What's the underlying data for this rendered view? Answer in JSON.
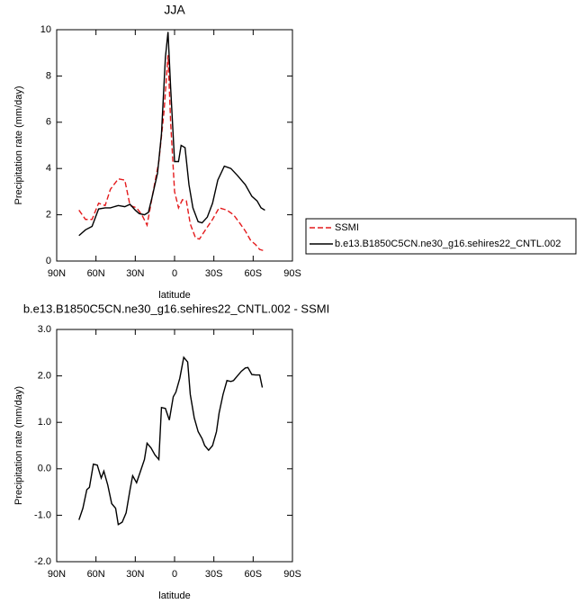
{
  "chart_data": [
    {
      "type": "line",
      "title": "JJA",
      "xlabel": "latitude",
      "ylabel": "Precipitation rate (mm/day)",
      "xlim": [
        90,
        -90
      ],
      "xticks": [
        {
          "value": 90,
          "label": "90N"
        },
        {
          "value": 60,
          "label": "60N"
        },
        {
          "value": 30,
          "label": "30N"
        },
        0,
        {
          "value": -30,
          "label": "30S"
        },
        {
          "value": -60,
          "label": "60S"
        },
        {
          "value": -90,
          "label": "90S"
        }
      ],
      "ylim": [
        0,
        10
      ],
      "yticks": [
        0,
        2,
        4,
        6,
        8,
        10
      ],
      "series": [
        {
          "name": "SSMI",
          "color": "#e41a1c",
          "dash": true,
          "x": [
            73,
            68,
            63,
            58,
            53,
            49,
            43,
            38,
            34,
            29,
            25,
            21,
            17,
            12,
            8,
            5,
            3,
            0,
            -3,
            -6,
            -9,
            -12,
            -16,
            -19,
            -23,
            -29,
            -34,
            -40,
            -45,
            -49,
            -54,
            -58,
            -62,
            -65,
            -68
          ],
          "values": [
            2.2,
            1.8,
            1.8,
            2.5,
            2.4,
            3.1,
            3.55,
            3.5,
            2.4,
            2.3,
            2.0,
            1.55,
            2.8,
            4.3,
            6.5,
            8.9,
            6.0,
            3.0,
            2.3,
            2.65,
            2.6,
            1.6,
            1.0,
            0.95,
            1.3,
            1.8,
            2.3,
            2.2,
            2.0,
            1.7,
            1.3,
            0.9,
            0.7,
            0.5,
            0.45
          ]
        },
        {
          "name": "b.e13.B1850C5CN.ne30_g16.sehires22_CNTL.002",
          "color": "#000000",
          "dash": false,
          "x": [
            73,
            68,
            63,
            58,
            53,
            49,
            43,
            38,
            34,
            30,
            27,
            23,
            20,
            17,
            13,
            10,
            7,
            5,
            3,
            0,
            -3,
            -5,
            -8,
            -11,
            -14,
            -18,
            -21,
            -25,
            -29,
            -33,
            -38,
            -43,
            -48,
            -54,
            -59,
            -63,
            -66,
            -69
          ],
          "values": [
            1.1,
            1.35,
            1.5,
            2.25,
            2.3,
            2.3,
            2.4,
            2.35,
            2.45,
            2.2,
            2.05,
            2.0,
            2.1,
            2.8,
            3.8,
            5.5,
            8.8,
            9.9,
            7.5,
            4.3,
            4.3,
            5.0,
            4.9,
            3.3,
            2.3,
            1.7,
            1.65,
            1.9,
            2.5,
            3.5,
            4.1,
            4.0,
            3.7,
            3.3,
            2.8,
            2.6,
            2.3,
            2.2
          ]
        }
      ]
    },
    {
      "type": "line",
      "title": "b.e13.B1850C5CN.ne30_g16.sehires22_CNTL.002 - SSMI",
      "xlabel": "latitude",
      "ylabel": "Precipitation rate (mm/day)",
      "xlim": [
        90,
        -90
      ],
      "xticks": [
        {
          "value": 90,
          "label": "90N"
        },
        {
          "value": 60,
          "label": "60N"
        },
        {
          "value": 30,
          "label": "30N"
        },
        0,
        {
          "value": -30,
          "label": "30S"
        },
        {
          "value": -60,
          "label": "60S"
        },
        {
          "value": -90,
          "label": "90S"
        }
      ],
      "ylim": [
        -2,
        3
      ],
      "yticks": [
        {
          "value": 3,
          "label": "3.0"
        },
        {
          "value": 2,
          "label": "2.0"
        },
        {
          "value": 1,
          "label": "1.0"
        },
        {
          "value": 0,
          "label": "0.0"
        },
        {
          "value": -1,
          "label": "-1.0"
        },
        {
          "value": -2,
          "label": "-2.0"
        }
      ],
      "series": [
        {
          "color": "#000000",
          "dash": false,
          "x": [
            73,
            70,
            67,
            65,
            62,
            59,
            56,
            54,
            51,
            48,
            45,
            43,
            40,
            37,
            34,
            32,
            29,
            26,
            23,
            21,
            18,
            15,
            12,
            10,
            7,
            4,
            1,
            -1,
            -4,
            -7,
            -10,
            -12,
            -15,
            -18,
            -21,
            -23,
            -26,
            -29,
            -32,
            -34,
            -37,
            -40,
            -43,
            -45,
            -48,
            -51,
            -54,
            -56,
            -59,
            -62,
            -65,
            -67
          ],
          "values": [
            -1.1,
            -0.85,
            -0.45,
            -0.4,
            0.1,
            0.08,
            -0.2,
            -0.05,
            -0.35,
            -0.75,
            -0.85,
            -1.2,
            -1.15,
            -0.95,
            -0.45,
            -0.15,
            -0.3,
            -0.05,
            0.2,
            0.55,
            0.45,
            0.3,
            0.2,
            1.32,
            1.3,
            1.05,
            1.55,
            1.65,
            1.95,
            2.4,
            2.3,
            1.6,
            1.1,
            0.8,
            0.65,
            0.5,
            0.4,
            0.5,
            0.8,
            1.2,
            1.6,
            1.9,
            1.88,
            1.9,
            2.0,
            2.1,
            2.17,
            2.18,
            2.03,
            2.02,
            2.02,
            1.75
          ]
        }
      ]
    }
  ]
}
